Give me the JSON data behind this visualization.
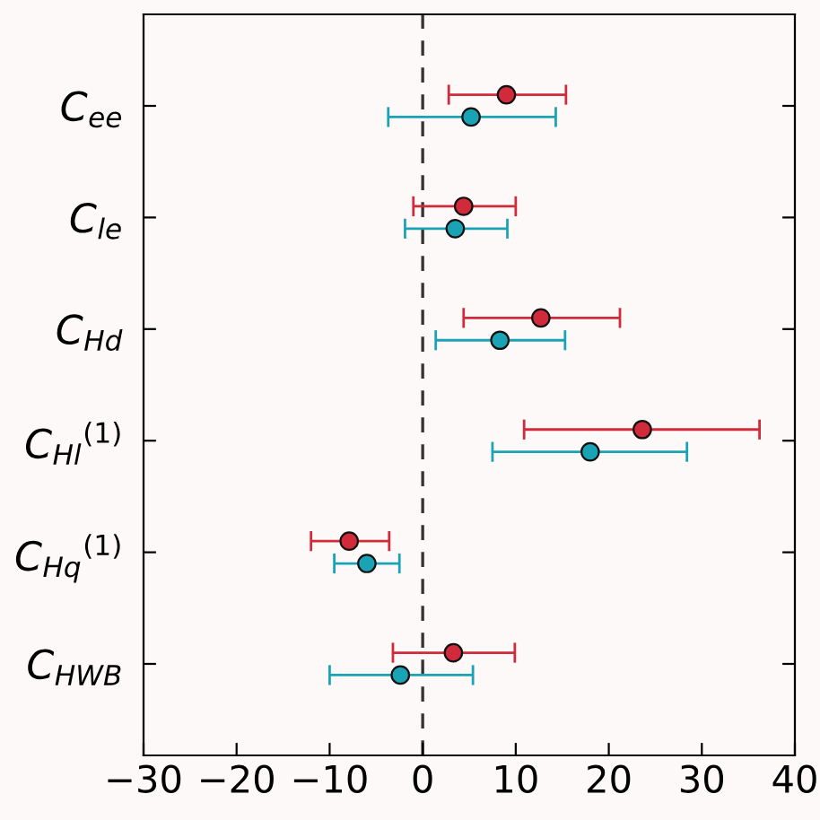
{
  "chart_data": {
    "type": "scatter",
    "orientation": "horizontal",
    "categories": [
      "C$_{ee}$",
      "C$_{le}$",
      "C$_{Hd}$",
      "C$_{Hl}$$^{(1)}$",
      "C$_{Hq}$$^{(1)}$",
      "C$_{HWB}$"
    ],
    "series": [
      {
        "color": "#d12a3a",
        "values": [
          9.0,
          4.4,
          12.7,
          23.6,
          -7.9,
          3.3
        ],
        "errors": [
          [
            2.8,
            15.4
          ],
          [
            -1.0,
            10.0
          ],
          [
            4.4,
            21.2
          ],
          [
            10.9,
            36.2
          ],
          [
            -12.0,
            -3.6
          ],
          [
            -3.2,
            9.9
          ]
        ]
      },
      {
        "color": "#1aa3b5",
        "values": [
          5.2,
          3.5,
          8.3,
          18.0,
          -6.0,
          -2.4
        ],
        "errors": [
          [
            -3.7,
            14.3
          ],
          [
            -1.9,
            9.1
          ],
          [
            1.4,
            15.3
          ],
          [
            7.5,
            28.4
          ],
          [
            -9.5,
            -2.5
          ],
          [
            -10.0,
            5.4
          ]
        ]
      }
    ],
    "xlim": [
      -30,
      40
    ],
    "xticks": [
      {
        "value": -30,
        "label": "−30"
      },
      {
        "value": -20,
        "label": "−20"
      },
      {
        "value": -10,
        "label": "−10"
      },
      0,
      10,
      20,
      30,
      40
    ],
    "ref_lines": [
      {
        "axis": "x",
        "value": 0,
        "line_style": "dashed",
        "color": "#333333"
      }
    ],
    "marker": "circle",
    "grid": false,
    "legend": false
  }
}
